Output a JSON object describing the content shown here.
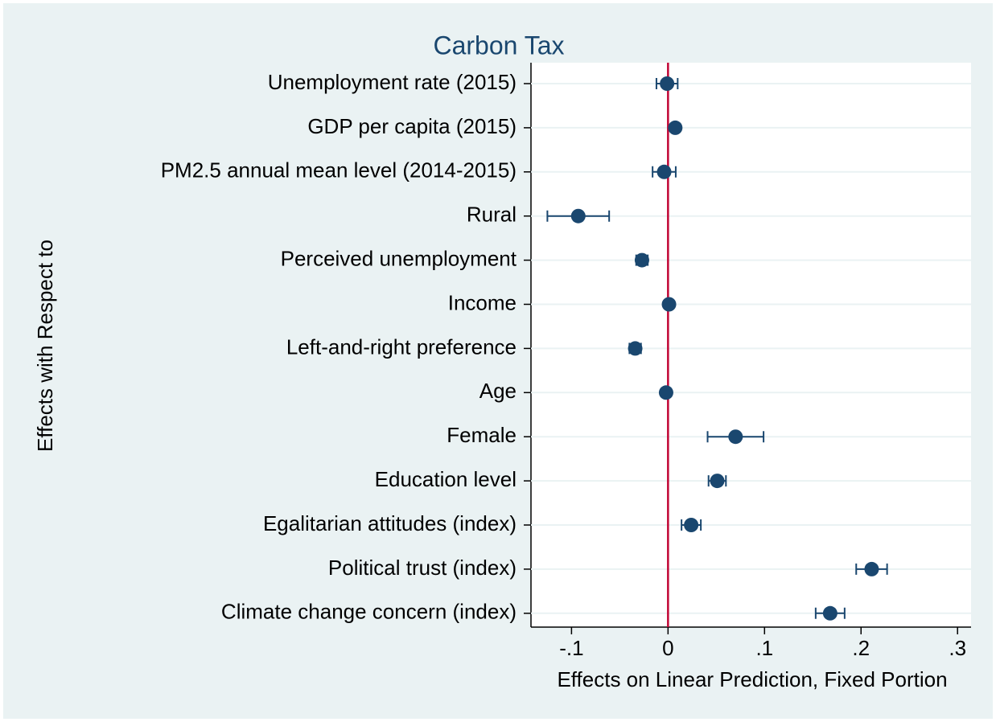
{
  "chart_data": {
    "type": "dot-errorbar",
    "title": "Carbon Tax",
    "xlabel": "Effects on Linear Prediction, Fixed Portion",
    "ylabel": "Effects with Respect to",
    "categories": [
      "Unemployment rate (2015)",
      "GDP per capita (2015)",
      "PM2.5 annual mean level (2014-2015)",
      "Rural",
      "Perceived unemployment",
      "Income",
      "Left-and-right preference",
      "Age",
      "Female",
      "Education level",
      "Egalitarian attitudes (index)",
      "Political trust (index)",
      "Climate change concern (index)"
    ],
    "values": [
      -0.001,
      0.0075,
      -0.004,
      -0.093,
      -0.027,
      0.001,
      -0.034,
      -0.002,
      0.07,
      0.051,
      0.024,
      0.211,
      0.168
    ],
    "errors": [
      0.011,
      0.003,
      0.012,
      0.032,
      0.006,
      0.002,
      0.006,
      0.002,
      0.029,
      0.009,
      0.01,
      0.016,
      0.015
    ],
    "color": "#1a476f",
    "xline": 0,
    "xline_color": "#c10534",
    "xlim": [
      -0.142,
      0.314
    ],
    "xticks": [
      {
        "value": -0.1,
        "label": "-.1"
      },
      0,
      {
        "value": 0.1,
        "label": ".1"
      },
      {
        "value": 0.2,
        "label": ".2"
      },
      {
        "value": 0.3,
        "label": ".3"
      }
    ],
    "grid": true
  }
}
